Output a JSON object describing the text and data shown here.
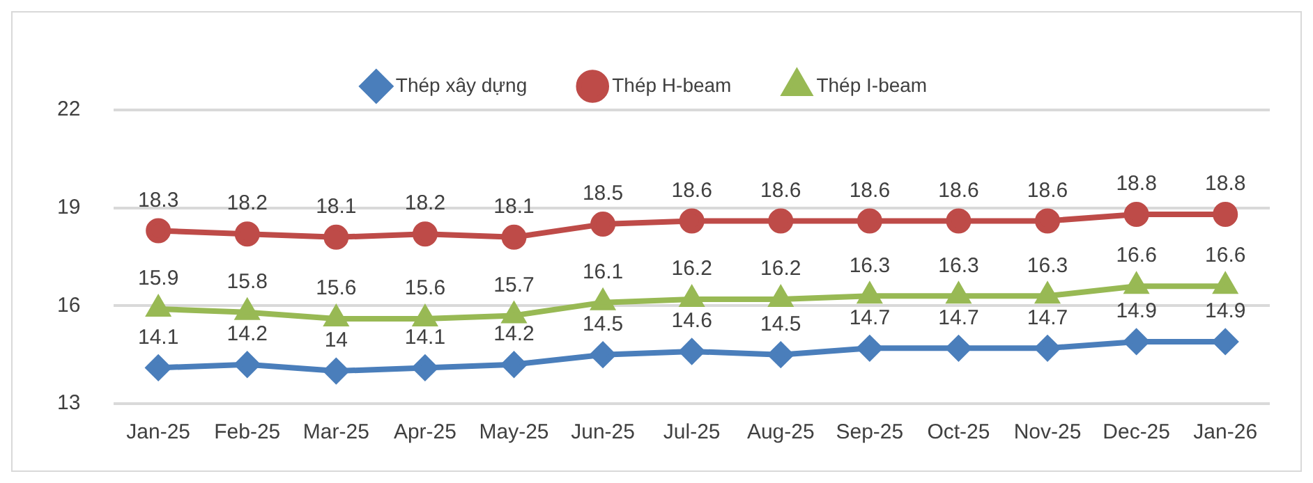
{
  "chart_data": {
    "type": "line",
    "categories": [
      "Jan-25",
      "Feb-25",
      "Mar-25",
      "Apr-25",
      "May-25",
      "Jun-25",
      "Jul-25",
      "Aug-25",
      "Sep-25",
      "Oct-25",
      "Nov-25",
      "Dec-25",
      "Jan-26"
    ],
    "series": [
      {
        "name": "Thép xây dựng",
        "color": "#4a7ebb",
        "marker": "diamond",
        "values": [
          14.1,
          14.2,
          14,
          14.1,
          14.2,
          14.5,
          14.6,
          14.5,
          14.7,
          14.7,
          14.7,
          14.9,
          14.9
        ]
      },
      {
        "name": "Thép H-beam",
        "color": "#be4b48",
        "marker": "circle",
        "values": [
          18.3,
          18.2,
          18.1,
          18.2,
          18.1,
          18.5,
          18.6,
          18.6,
          18.6,
          18.6,
          18.6,
          18.8,
          18.8
        ]
      },
      {
        "name": "Thép I-beam",
        "color": "#98b954",
        "marker": "triangle",
        "values": [
          15.9,
          15.8,
          15.6,
          15.6,
          15.7,
          16.1,
          16.2,
          16.2,
          16.3,
          16.3,
          16.3,
          16.6,
          16.6
        ]
      }
    ],
    "ylim": [
      13,
      22
    ],
    "yticks": [
      13,
      16,
      19,
      22
    ],
    "grid": "y",
    "legend": "top",
    "data_labels": true,
    "line_style": "solid"
  }
}
